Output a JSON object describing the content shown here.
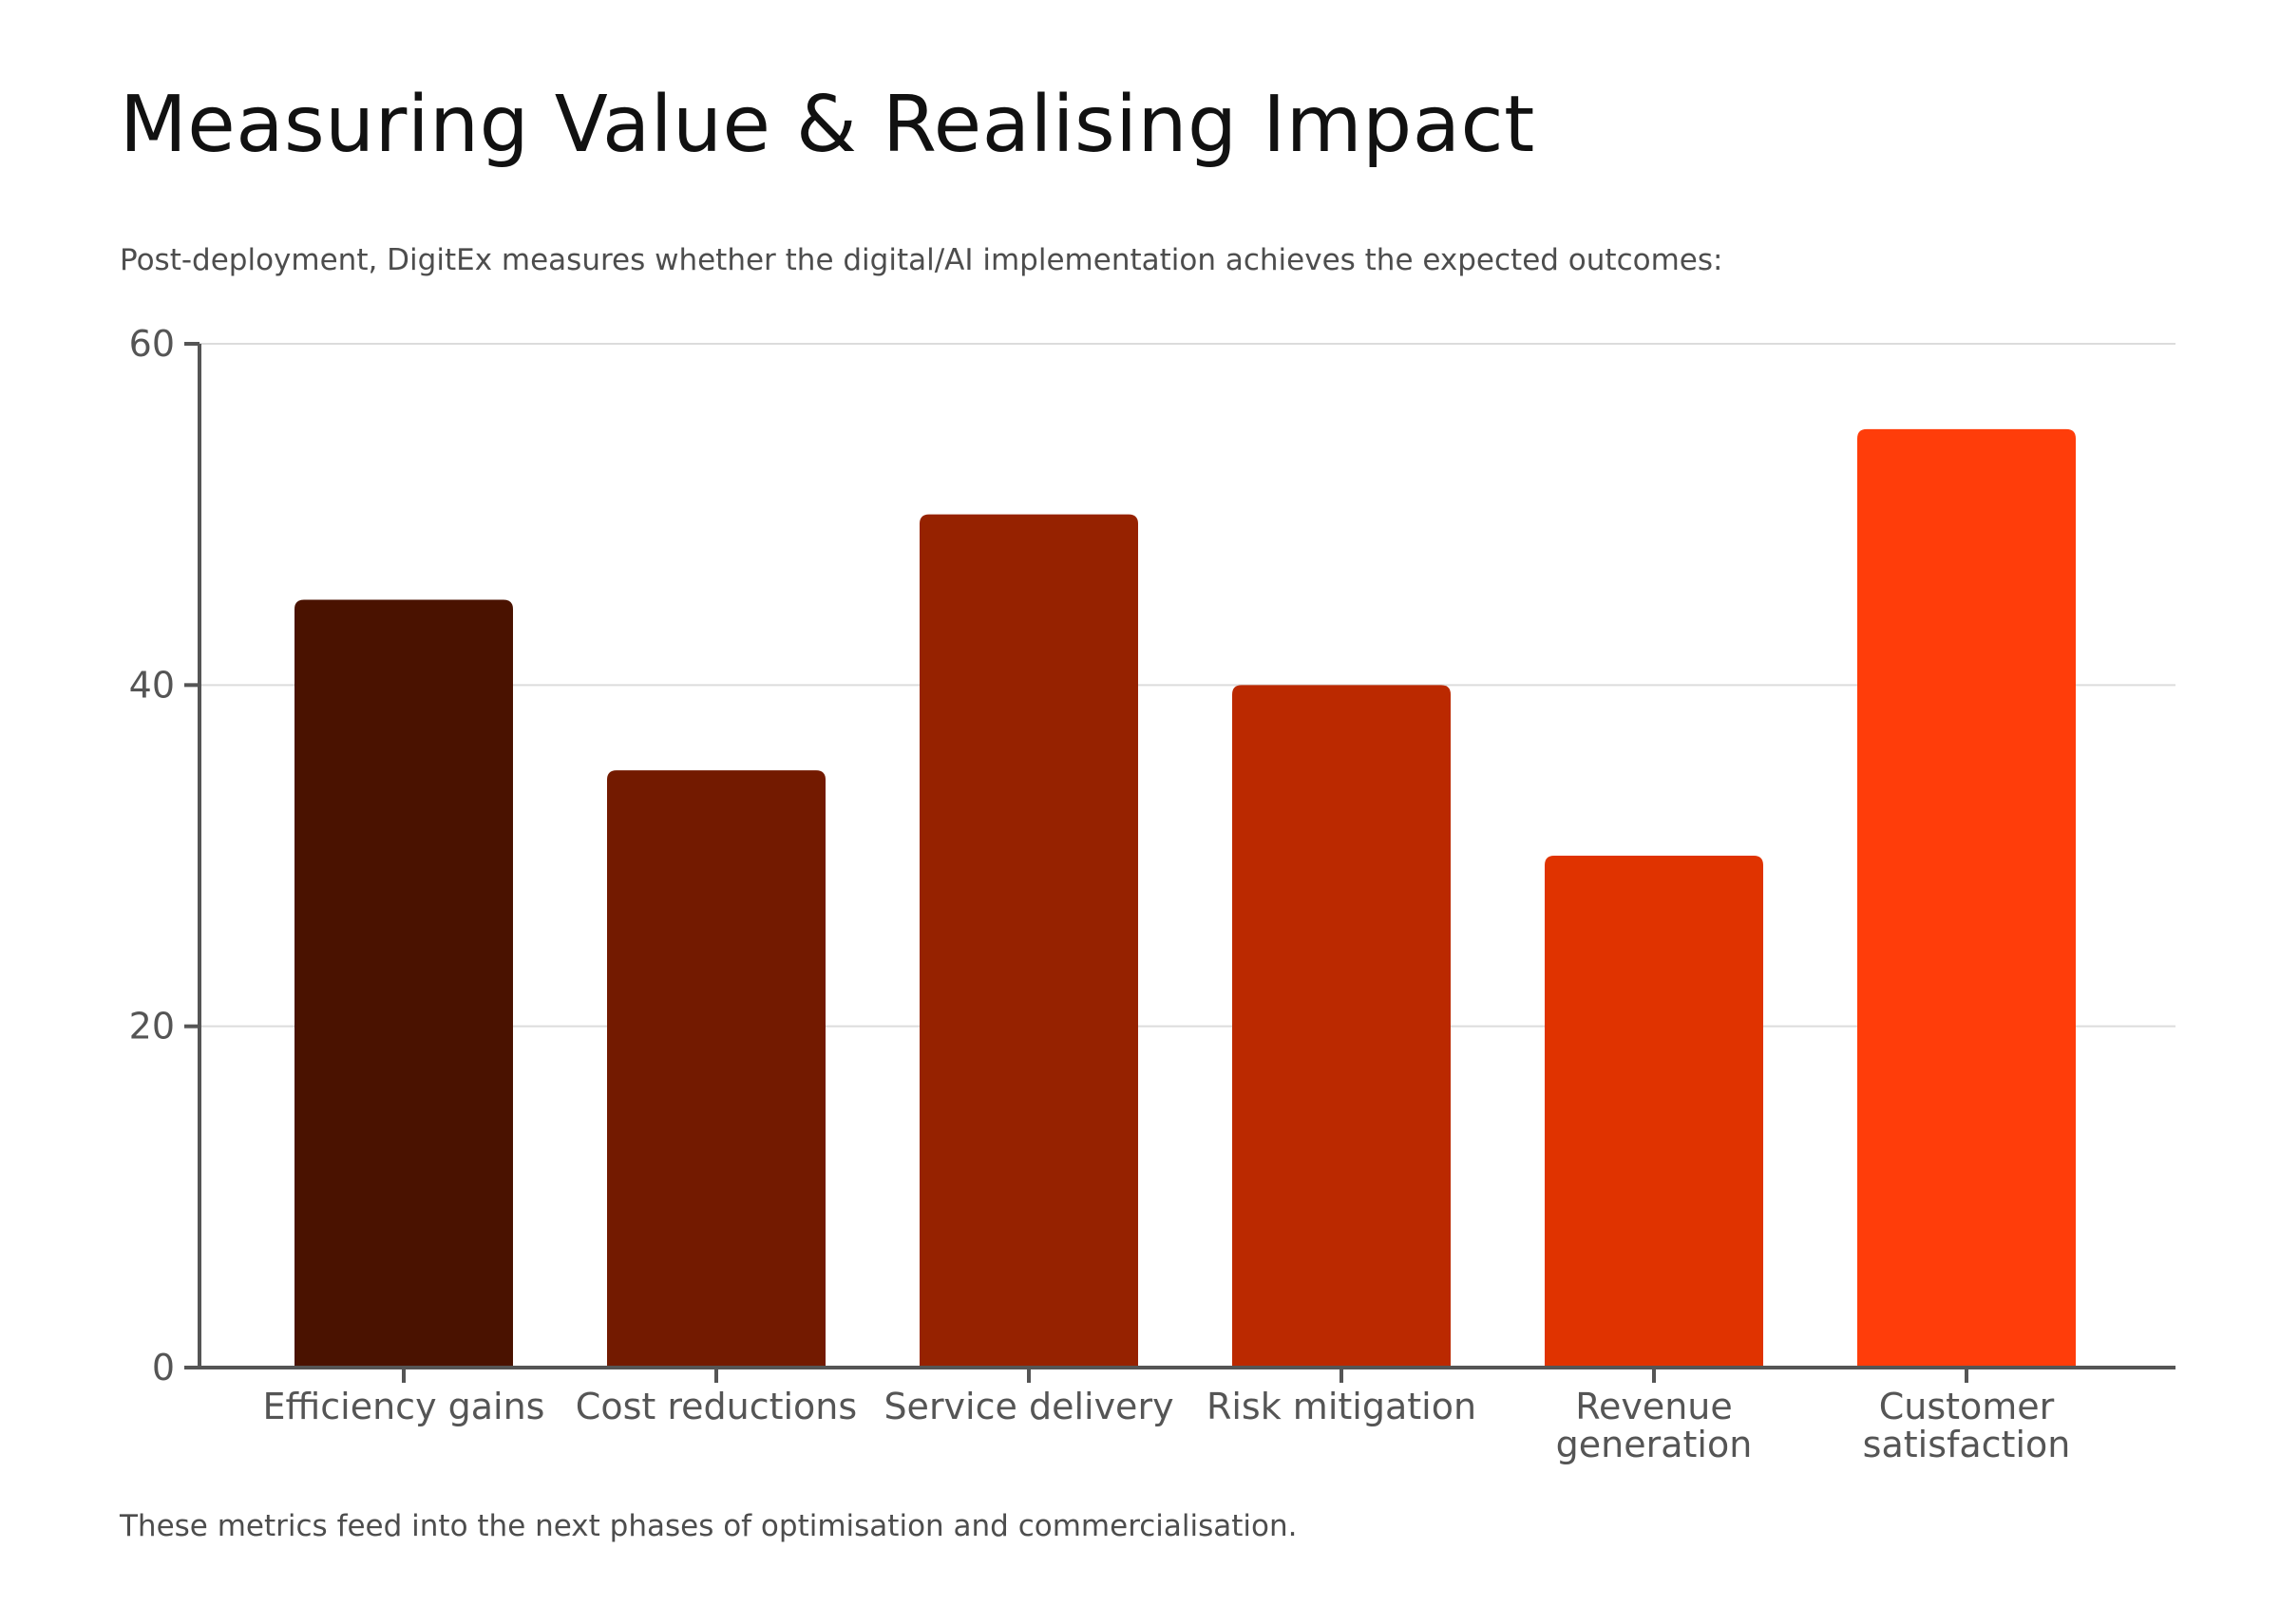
{
  "page": {
    "title": "Measuring Value & Realising Impact",
    "subtitle": "Post-deployment, DigitEx measures whether the digital/AI implementation achieves the expected outcomes:",
    "footnote": "These metrics feed into the next phases of optimisation and commercialisation."
  },
  "chart_data": {
    "type": "bar",
    "title": "Measuring Value & Realising Impact",
    "xlabel": "",
    "ylabel": "",
    "ylim": [
      0,
      60
    ],
    "yticks": [
      0,
      20,
      40,
      60
    ],
    "grid": true,
    "categories": [
      {
        "lines": [
          "Efficiency gains"
        ]
      },
      {
        "lines": [
          "Cost reductions"
        ]
      },
      {
        "lines": [
          "Service delivery"
        ]
      },
      {
        "lines": [
          "Risk mitigation"
        ]
      },
      {
        "lines": [
          "Revenue",
          "generation"
        ]
      },
      {
        "lines": [
          "Customer",
          "satisfaction"
        ]
      }
    ],
    "values": [
      45,
      35,
      50,
      40,
      30,
      55
    ],
    "colors": [
      "#4a1200",
      "#731a00",
      "#962200",
      "#bb2900",
      "#e03300",
      "#ff3d0a"
    ]
  }
}
